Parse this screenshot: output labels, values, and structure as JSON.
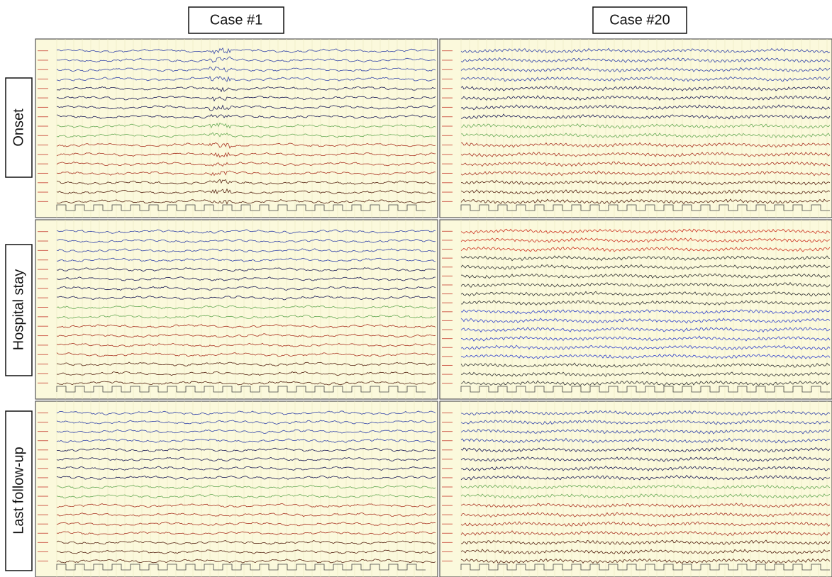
{
  "columns": [
    "Case #1",
    "Case #20"
  ],
  "rows": [
    "Onset",
    "Hospital stay",
    "Last follow-up"
  ]
}
